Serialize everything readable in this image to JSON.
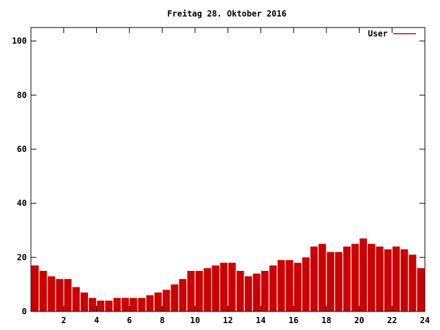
{
  "chart_data": {
    "type": "bar",
    "title": "Freitag 28. Oktober 2016",
    "xlabel": "",
    "ylabel": "",
    "xlim": [
      0,
      24
    ],
    "ylim": [
      0,
      105
    ],
    "x_ticks": [
      2,
      4,
      6,
      8,
      10,
      12,
      14,
      16,
      18,
      20,
      22,
      24
    ],
    "y_ticks": [
      0,
      20,
      40,
      60,
      80,
      100
    ],
    "grid": false,
    "legend_position": "top-right",
    "series": [
      {
        "name": "User",
        "color": "#cc0000",
        "x": [
          0.25,
          0.75,
          1.25,
          1.75,
          2.25,
          2.75,
          3.25,
          3.75,
          4.25,
          4.75,
          5.25,
          5.75,
          6.25,
          6.75,
          7.25,
          7.75,
          8.25,
          8.75,
          9.25,
          9.75,
          10.25,
          10.75,
          11.25,
          11.75,
          12.25,
          12.75,
          13.25,
          13.75,
          14.25,
          14.75,
          15.25,
          15.75,
          16.25,
          16.75,
          17.25,
          17.75,
          18.25,
          18.75,
          19.25,
          19.75,
          20.25,
          20.75,
          21.25,
          21.75,
          22.25,
          22.75,
          23.25,
          23.75
        ],
        "values": [
          17,
          15,
          13,
          12,
          12,
          9,
          7,
          5,
          4,
          4,
          5,
          5,
          5,
          5,
          6,
          7,
          8,
          10,
          12,
          15,
          15,
          16,
          17,
          18,
          18,
          15,
          13,
          14,
          15,
          17,
          19,
          19,
          18,
          20,
          24,
          25,
          22,
          22,
          24,
          25,
          27,
          25,
          24,
          23,
          24,
          23,
          21,
          16
        ]
      }
    ]
  }
}
